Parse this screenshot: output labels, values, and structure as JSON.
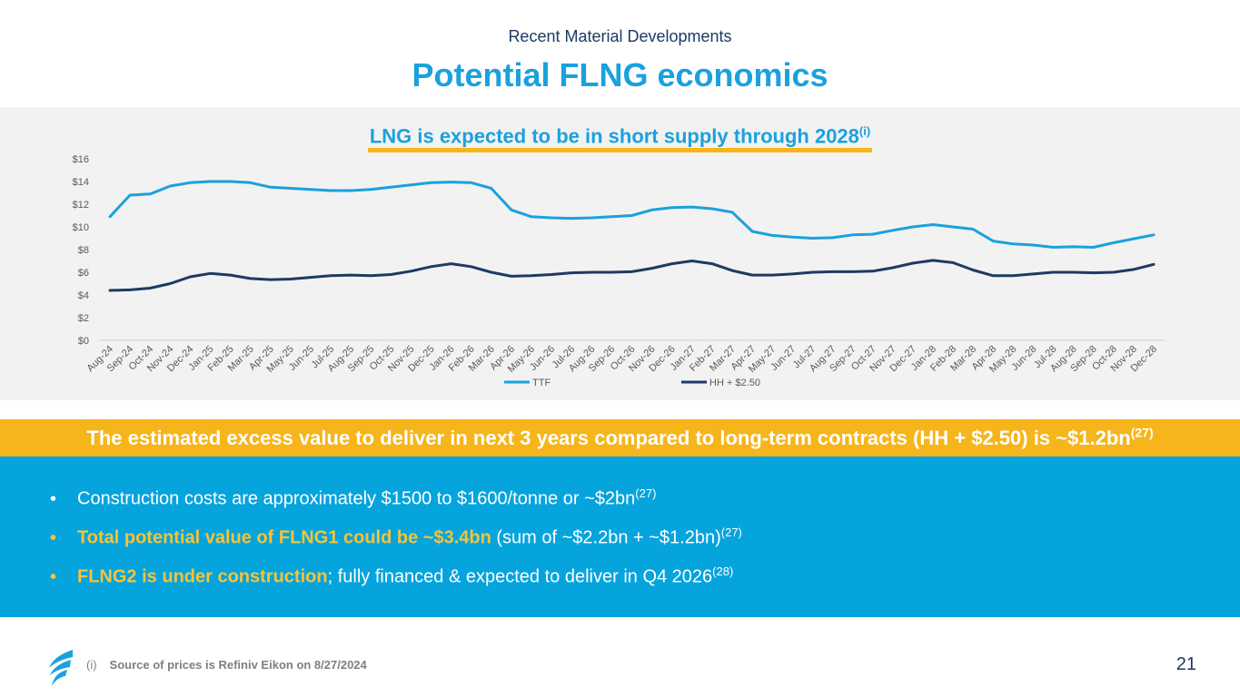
{
  "header": {
    "subtitle": "Recent Material Developments",
    "title": "Potential FLNG economics"
  },
  "chart_heading": {
    "text": "LNG is expected to be in short supply through 2028",
    "sup": "(i)"
  },
  "chart_data": {
    "type": "line",
    "title": "LNG is expected to be in short supply through 2028(i)",
    "xlabel": "",
    "ylabel": "",
    "ylim": [
      0,
      16
    ],
    "y_ticks": [
      "$0",
      "$2",
      "$4",
      "$6",
      "$8",
      "$10",
      "$12",
      "$14",
      "$16"
    ],
    "grid": false,
    "legend_position": "bottom",
    "categories": [
      "Aug-24",
      "Sep-24",
      "Oct-24",
      "Nov-24",
      "Dec-24",
      "Jan-25",
      "Feb-25",
      "Mar-25",
      "Apr-25",
      "May-25",
      "Jun-25",
      "Jul-25",
      "Aug-25",
      "Sep-25",
      "Oct-25",
      "Nov-25",
      "Dec-25",
      "Jan-26",
      "Feb-26",
      "Mar-26",
      "Apr-26",
      "May-26",
      "Jun-26",
      "Jul-26",
      "Aug-26",
      "Sep-26",
      "Oct-26",
      "Nov-26",
      "Dec-26",
      "Jan-27",
      "Feb-27",
      "Mar-27",
      "Apr-27",
      "May-27",
      "Jun-27",
      "Jul-27",
      "Aug-27",
      "Sep-27",
      "Oct-27",
      "Nov-27",
      "Dec-27",
      "Jan-28",
      "Feb-28",
      "Mar-28",
      "Apr-28",
      "May-28",
      "Jun-28",
      "Jul-28",
      "Aug-28",
      "Sep-28",
      "Oct-28",
      "Nov-28",
      "Dec-28"
    ],
    "series": [
      {
        "name": "TTF",
        "color": "#1aa1de",
        "values": [
          10.9,
          12.8,
          12.9,
          13.6,
          13.9,
          14.0,
          14.0,
          13.9,
          13.5,
          13.4,
          13.3,
          13.2,
          13.2,
          13.3,
          13.5,
          13.7,
          13.9,
          13.95,
          13.9,
          13.4,
          11.5,
          10.9,
          10.8,
          10.75,
          10.8,
          10.9,
          11.0,
          11.5,
          11.7,
          11.75,
          11.6,
          11.3,
          9.6,
          9.25,
          9.1,
          9.0,
          9.05,
          9.3,
          9.35,
          9.7,
          10.0,
          10.2,
          10.0,
          9.8,
          8.75,
          8.5,
          8.4,
          8.2,
          8.25,
          8.2,
          8.6,
          8.95,
          9.3
        ]
      },
      {
        "name": "HH + $2.50",
        "color": "#1d3a63",
        "values": [
          4.4,
          4.45,
          4.6,
          5.0,
          5.6,
          5.9,
          5.75,
          5.45,
          5.35,
          5.4,
          5.55,
          5.7,
          5.75,
          5.7,
          5.8,
          6.1,
          6.5,
          6.75,
          6.5,
          6.0,
          5.65,
          5.7,
          5.8,
          5.95,
          6.0,
          6.0,
          6.05,
          6.35,
          6.75,
          7.0,
          6.75,
          6.15,
          5.75,
          5.75,
          5.85,
          6.0,
          6.05,
          6.05,
          6.1,
          6.4,
          6.8,
          7.05,
          6.85,
          6.2,
          5.7,
          5.7,
          5.85,
          6.0,
          6.0,
          5.95,
          6.0,
          6.25,
          6.7
        ]
      }
    ]
  },
  "banner": {
    "text": "The estimated excess value to deliver in next 3 years compared to long-term contracts (HH + $2.50) is ~$1.2bn",
    "sup": "(27)"
  },
  "bullets": [
    {
      "marker": "•",
      "highlight": "",
      "text": "Construction costs are approximately $1500 to $1600/tonne or ~$2bn",
      "sup": "(27)"
    },
    {
      "marker": "•",
      "highlight": "Total potential value of FLNG1 could be ~$3.4bn",
      "text": " (sum of ~$2.2bn + ~$1.2bn)",
      "sup": "(27)"
    },
    {
      "marker": "•",
      "highlight": "FLNG2 is under construction",
      "text": "; fully financed & expected to deliver in Q4 2026",
      "sup": "(28)"
    }
  ],
  "footer": {
    "footnote_mark": "(i)",
    "footnote_text": "Source of prices  is Refiniv Eikon on 8/27/2024",
    "page_number": "21"
  },
  "colors": {
    "accent_blue": "#1aa1de",
    "navy": "#1d3a63",
    "gold": "#f6b51a",
    "box_blue": "#05a4dd"
  }
}
